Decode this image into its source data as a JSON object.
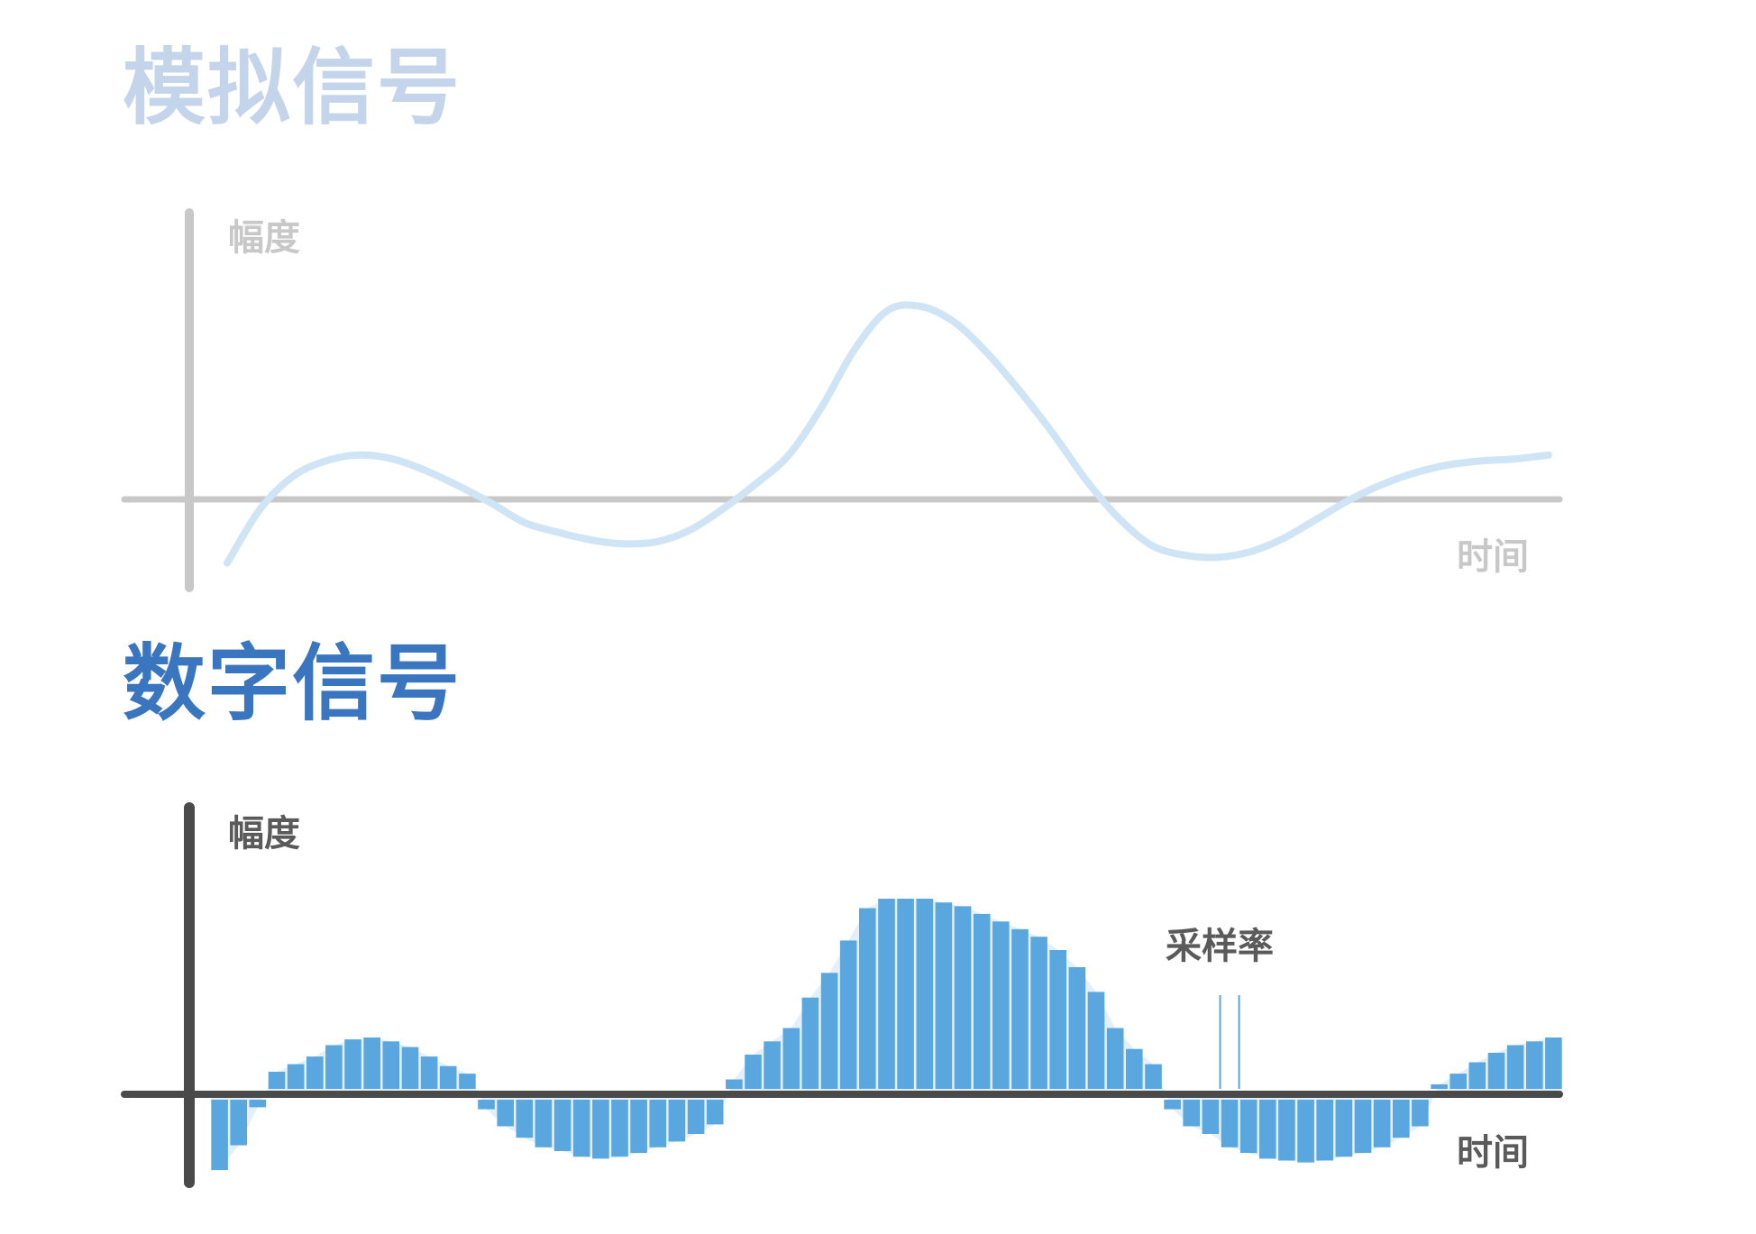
{
  "colors": {
    "analog_title": "#c4d4ea",
    "analog_axis": "#c8c8c8",
    "analog_label": "#c8c8c8",
    "analog_curve": "#cfe4f4",
    "digital_title": "#3a76bf",
    "digital_axis": "#4a4a4a",
    "digital_label": "#5a5a5a",
    "bar_fill": "#5aa7df",
    "bar_shadow": "#e3f0fa"
  },
  "analog": {
    "title": "模拟信号",
    "y_label": "幅度",
    "x_label": "时间"
  },
  "digital": {
    "title": "数字信号",
    "y_label": "幅度",
    "x_label": "时间",
    "sample_rate_label": "采样率"
  },
  "chart_data": [
    {
      "type": "line",
      "name": "analog-signal",
      "x": [
        0,
        2.5,
        5,
        7.5,
        10,
        12.5,
        15,
        17.5,
        20,
        22.5,
        25,
        27.5,
        30,
        32.5,
        35,
        37.5,
        40,
        42.5,
        45,
        47.5,
        50,
        52.5,
        55,
        57.5,
        60,
        62.5,
        65,
        67.5,
        70,
        72.5,
        75,
        77.5,
        80,
        82.5,
        85,
        87.5,
        90,
        92.5,
        95,
        97.5,
        100
      ],
      "values": [
        -0.33,
        -0.05,
        0.12,
        0.2,
        0.23,
        0.21,
        0.15,
        0.07,
        -0.02,
        -0.12,
        -0.17,
        -0.21,
        -0.23,
        -0.22,
        -0.16,
        -0.05,
        0.08,
        0.23,
        0.48,
        0.78,
        0.98,
        1.0,
        0.92,
        0.76,
        0.56,
        0.34,
        0.1,
        -0.1,
        -0.24,
        -0.29,
        -0.3,
        -0.27,
        -0.2,
        -0.1,
        0.0,
        0.08,
        0.14,
        0.18,
        0.2,
        0.21,
        0.23
      ],
      "xlim": [
        0,
        100
      ],
      "ylim": [
        -0.45,
        1.0
      ]
    },
    {
      "type": "bar",
      "name": "digital-signal",
      "values": [
        -0.37,
        -0.24,
        -0.04,
        0.09,
        0.13,
        0.17,
        0.23,
        0.26,
        0.27,
        0.25,
        0.22,
        0.17,
        0.12,
        0.08,
        -0.05,
        -0.14,
        -0.2,
        -0.25,
        -0.27,
        -0.3,
        -0.31,
        -0.3,
        -0.28,
        -0.25,
        -0.22,
        -0.18,
        -0.13,
        0.05,
        0.18,
        0.25,
        0.32,
        0.48,
        0.61,
        0.78,
        0.95,
        1.0,
        1.0,
        1.0,
        0.98,
        0.96,
        0.92,
        0.88,
        0.84,
        0.8,
        0.73,
        0.64,
        0.51,
        0.32,
        0.21,
        0.13,
        -0.05,
        -0.14,
        -0.18,
        -0.25,
        -0.28,
        -0.31,
        -0.32,
        -0.33,
        -0.32,
        -0.3,
        -0.28,
        -0.25,
        -0.2,
        -0.14,
        0.02,
        0.08,
        0.14,
        0.19,
        0.23,
        0.25,
        0.27
      ],
      "ylim": [
        -0.45,
        1.0
      ]
    }
  ]
}
